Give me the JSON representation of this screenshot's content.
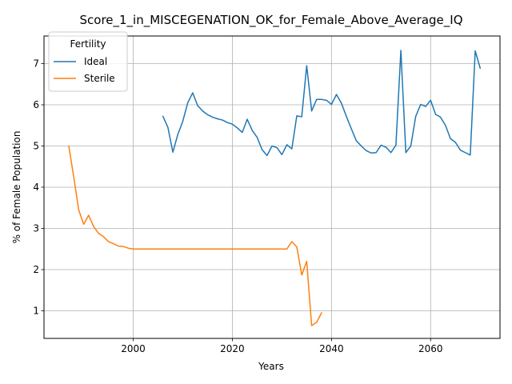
{
  "chart_data": {
    "type": "line",
    "title": "Score_1_in_MISCEGENATION_OK_for_Female_Above_Average_IQ",
    "xlabel": "Years",
    "ylabel": "% of Female Population",
    "xlim": [
      1982,
      2074
    ],
    "ylim": [
      0.33,
      7.67
    ],
    "xticks": [
      2000,
      2020,
      2040,
      2060
    ],
    "yticks": [
      1,
      2,
      3,
      4,
      5,
      6,
      7
    ],
    "grid": true,
    "legend": {
      "title": "Fertility",
      "placement": "top-left"
    },
    "series": [
      {
        "name": "Ideal",
        "color": "#1f77b4",
        "x": [
          2006,
          2007,
          2008,
          2009,
          2010,
          2011,
          2012,
          2013,
          2014,
          2015,
          2016,
          2017,
          2018,
          2019,
          2020,
          2021,
          2022,
          2023,
          2024,
          2025,
          2026,
          2027,
          2028,
          2029,
          2030,
          2031,
          2032,
          2033,
          2034,
          2035,
          2036,
          2037,
          2038,
          2039,
          2040,
          2041,
          2042,
          2043,
          2044,
          2045,
          2046,
          2047,
          2048,
          2049,
          2050,
          2051,
          2052,
          2053,
          2054,
          2055,
          2056,
          2057,
          2058,
          2059,
          2060,
          2061,
          2062,
          2063,
          2064,
          2065,
          2066,
          2067,
          2068,
          2069,
          2070
        ],
        "y": [
          5.72,
          5.45,
          4.85,
          5.28,
          5.6,
          6.05,
          6.29,
          5.98,
          5.85,
          5.76,
          5.7,
          5.66,
          5.63,
          5.57,
          5.53,
          5.44,
          5.33,
          5.65,
          5.38,
          5.21,
          4.91,
          4.77,
          5.0,
          4.96,
          4.79,
          5.03,
          4.93,
          5.73,
          5.71,
          6.95,
          5.85,
          6.13,
          6.13,
          6.11,
          6.01,
          6.25,
          6.04,
          5.72,
          5.42,
          5.13,
          5.0,
          4.89,
          4.83,
          4.84,
          5.02,
          4.97,
          4.84,
          5.02,
          7.32,
          4.84,
          5.0,
          5.72,
          6.01,
          5.96,
          6.11,
          5.77,
          5.7,
          5.5,
          5.18,
          5.09,
          4.9,
          4.84,
          4.78,
          7.31,
          6.89
        ]
      },
      {
        "name": "Sterile",
        "color": "#ff7f0e",
        "x": [
          1987,
          1988,
          1989,
          1990,
          1991,
          1992,
          1993,
          1994,
          1995,
          1996,
          1997,
          1998,
          1999,
          2000,
          2001,
          2002,
          2003,
          2004,
          2005,
          2006,
          2007,
          2008,
          2009,
          2010,
          2011,
          2012,
          2013,
          2014,
          2015,
          2016,
          2017,
          2018,
          2019,
          2020,
          2021,
          2022,
          2023,
          2024,
          2025,
          2026,
          2027,
          2028,
          2029,
          2030,
          2031,
          2032,
          2033,
          2034,
          2035,
          2036,
          2037,
          2038
        ],
        "y": [
          5.0,
          4.25,
          3.45,
          3.1,
          3.32,
          3.05,
          2.88,
          2.8,
          2.68,
          2.63,
          2.57,
          2.56,
          2.52,
          2.5,
          2.5,
          2.5,
          2.5,
          2.5,
          2.5,
          2.5,
          2.5,
          2.5,
          2.5,
          2.5,
          2.5,
          2.5,
          2.5,
          2.5,
          2.5,
          2.5,
          2.5,
          2.5,
          2.5,
          2.5,
          2.5,
          2.5,
          2.5,
          2.5,
          2.5,
          2.5,
          2.5,
          2.5,
          2.5,
          2.5,
          2.5,
          2.68,
          2.55,
          1.87,
          2.2,
          0.64,
          0.72,
          0.95
        ]
      }
    ]
  }
}
